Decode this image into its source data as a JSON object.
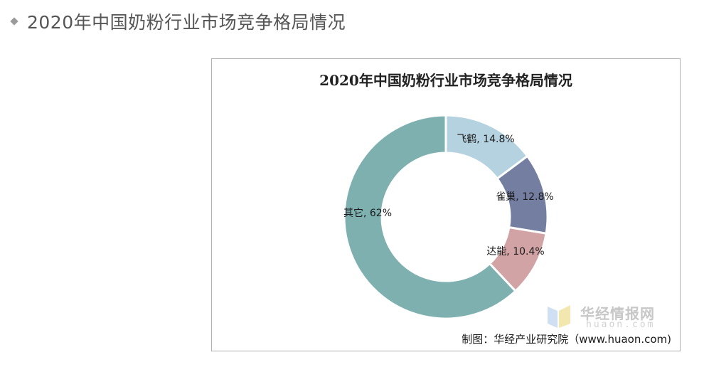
{
  "page": {
    "heading": "2020年中国奶粉行业市场竞争格局情况"
  },
  "chart_data": {
    "type": "pie",
    "variant": "donut",
    "title": "2020年中国奶粉行业市场竞争格局情况",
    "slices": [
      {
        "label": "飞鹤",
        "value": 14.8,
        "display": "飞鹤, 14.8%",
        "color": "#b5d2e0"
      },
      {
        "label": "雀巢",
        "value": 12.8,
        "display": "雀巢, 12.8%",
        "color": "#737ea0"
      },
      {
        "label": "达能",
        "value": 10.4,
        "display": "达能, 10.4%",
        "color": "#d2a3a5"
      },
      {
        "label": "其它",
        "value": 62,
        "display": "其它, 62%",
        "color": "#7fb0b0"
      }
    ],
    "legend": "none",
    "start_angle": "12 o'clock",
    "direction": "clockwise"
  },
  "watermark": {
    "name": "华经情报网",
    "domain": "huaon.com"
  },
  "credit": "制图：华经产业研究院（www.huaon.com)"
}
